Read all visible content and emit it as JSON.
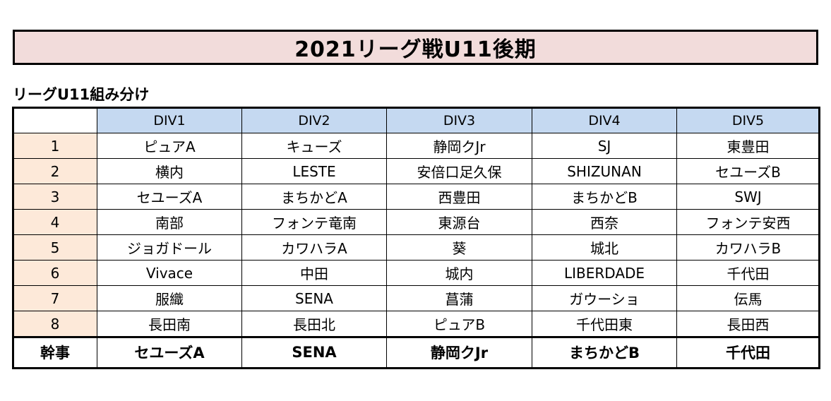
{
  "title": "2021リーグ戦U11後期",
  "subtitle": "リーグU11組み分け",
  "table": {
    "corner": "",
    "columns": [
      "DIV1",
      "DIV2",
      "DIV3",
      "DIV4",
      "DIV5"
    ],
    "rows": [
      {
        "label": "1",
        "cells": [
          "ピュアA",
          "キューズ",
          "静岡クJr",
          "SJ",
          "東豊田"
        ]
      },
      {
        "label": "2",
        "cells": [
          "横内",
          "LESTE",
          "安倍口足久保",
          "SHIZUNAN",
          "セユーズB"
        ]
      },
      {
        "label": "3",
        "cells": [
          "セユーズA",
          "まちかどA",
          "西豊田",
          "まちかどB",
          "SWJ"
        ]
      },
      {
        "label": "4",
        "cells": [
          "南部",
          "フォンテ竜南",
          "東源台",
          "西奈",
          "フォンテ安西"
        ]
      },
      {
        "label": "5",
        "cells": [
          "ジョガドール",
          "カワハラA",
          "葵",
          "城北",
          "カワハラB"
        ]
      },
      {
        "label": "6",
        "cells": [
          "Vivace",
          "中田",
          "城内",
          "LIBERDADE",
          "千代田"
        ]
      },
      {
        "label": "7",
        "cells": [
          "服織",
          "SENA",
          "菖蒲",
          "ガウーショ",
          "伝馬"
        ]
      },
      {
        "label": "8",
        "cells": [
          "長田南",
          "長田北",
          "ピュアB",
          "千代田東",
          "長田西"
        ]
      }
    ],
    "organizer": {
      "label": "幹事",
      "cells": [
        "セユーズA",
        "SENA",
        "静岡クJr",
        "まちかどB",
        "千代田"
      ]
    }
  }
}
